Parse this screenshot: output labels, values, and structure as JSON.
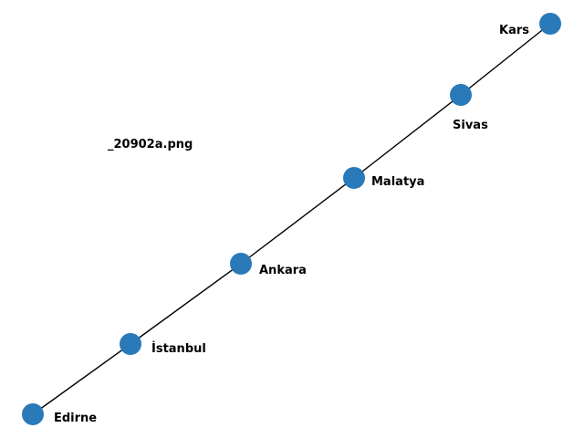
{
  "caption": "_20902a.png",
  "colors": {
    "node": "#2a7ab9",
    "edge": "#000000",
    "label": "#000000"
  },
  "nodes": [
    {
      "id": "edirne",
      "label": "Edirne"
    },
    {
      "id": "istanbul",
      "label": "İstanbul"
    },
    {
      "id": "ankara",
      "label": "Ankara"
    },
    {
      "id": "malatya",
      "label": "Malatya"
    },
    {
      "id": "sivas",
      "label": "Sivas"
    },
    {
      "id": "kars",
      "label": "Kars"
    }
  ],
  "edges": [
    {
      "from": "edirne",
      "to": "istanbul"
    },
    {
      "from": "istanbul",
      "to": "ankara"
    },
    {
      "from": "ankara",
      "to": "malatya"
    },
    {
      "from": "malatya",
      "to": "sivas"
    },
    {
      "from": "sivas",
      "to": "kars"
    }
  ]
}
